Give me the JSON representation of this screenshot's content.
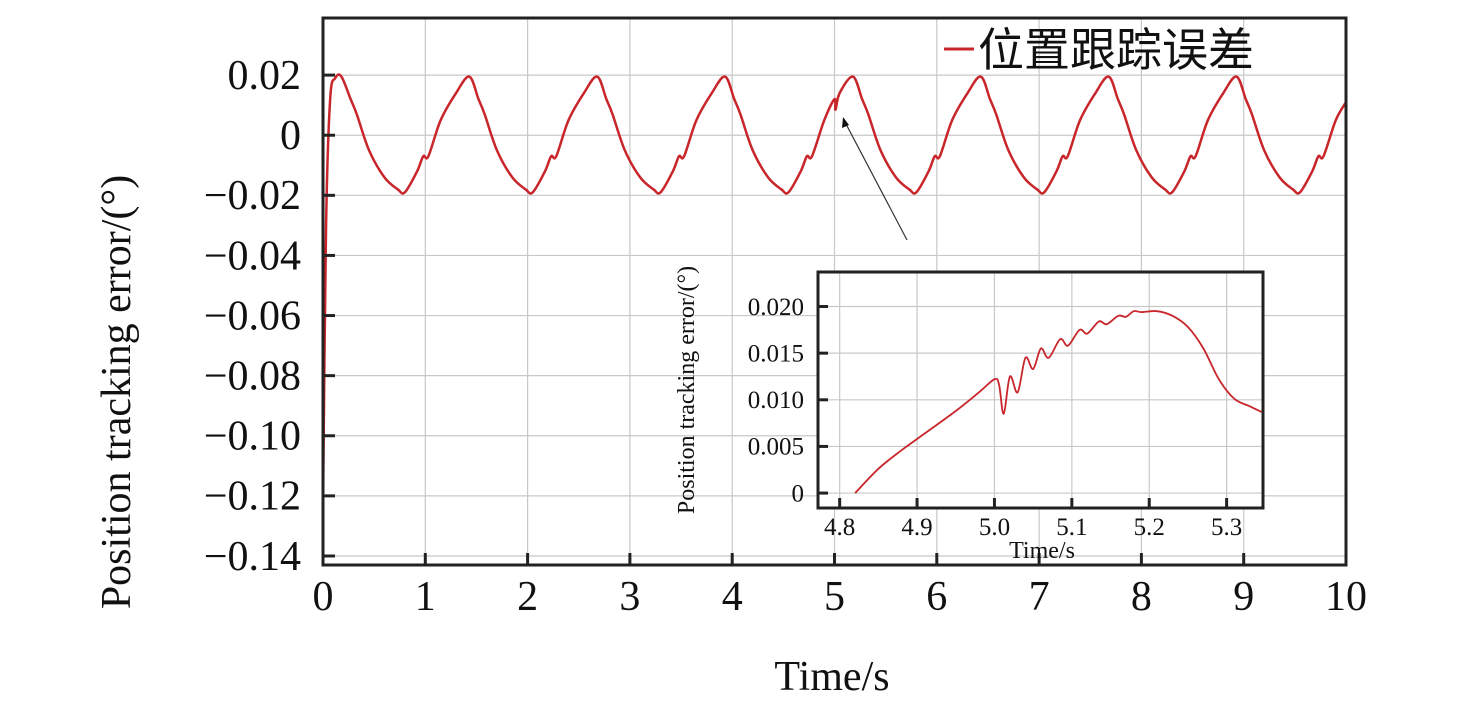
{
  "chart_data": [
    {
      "type": "line",
      "title": "",
      "xlabel": "Time/s",
      "ylabel": "Position tracking error/(°)",
      "xlim": [
        0,
        10
      ],
      "ylim": [
        -0.143,
        0.039
      ],
      "xticks": [
        0,
        1,
        2,
        3,
        4,
        5,
        6,
        7,
        8,
        9,
        10
      ],
      "xtick_labels": [
        "0",
        "1",
        "2",
        "3",
        "4",
        "5",
        "6",
        "7",
        "8",
        "9",
        "10"
      ],
      "yticks": [
        0.02,
        0,
        -0.02,
        -0.04,
        -0.06,
        -0.08,
        -0.1,
        -0.12,
        -0.14
      ],
      "ytick_labels": [
        "0.02",
        "0",
        "−0.02",
        "−0.04",
        "−0.06",
        "−0.08",
        "−0.10",
        "−0.12",
        "−0.14"
      ],
      "grid": true,
      "legend_position": "top-right",
      "series": [
        {
          "name": "位置跟踪误差",
          "color": "#c8262b",
          "points": [
            [
              0,
              -0.125
            ],
            [
              0.03,
              -0.03
            ],
            [
              0.07,
              0.012
            ],
            [
              0.12,
              0.019
            ],
            [
              0.18,
              0.0195
            ],
            [
              0.27,
              0.012
            ],
            [
              0.33,
              0.007
            ],
            [
              0.45,
              -0.005
            ],
            [
              0.6,
              -0.014
            ],
            [
              0.73,
              -0.018
            ],
            [
              0.8,
              -0.019
            ],
            [
              0.92,
              -0.012
            ],
            [
              0.98,
              -0.007
            ],
            [
              1.03,
              -0.007
            ],
            [
              1.15,
              0.005
            ],
            [
              1.3,
              0.014
            ],
            [
              1.43,
              0.0195
            ],
            [
              1.52,
              0.012
            ],
            [
              1.58,
              0.007
            ],
            [
              1.7,
              -0.005
            ],
            [
              1.85,
              -0.014
            ],
            [
              1.98,
              -0.018
            ],
            [
              2.05,
              -0.019
            ],
            [
              2.17,
              -0.012
            ],
            [
              2.23,
              -0.007
            ],
            [
              2.28,
              -0.007
            ],
            [
              2.4,
              0.005
            ],
            [
              2.55,
              0.014
            ],
            [
              2.68,
              0.0195
            ],
            [
              2.77,
              0.012
            ],
            [
              2.83,
              0.007
            ],
            [
              2.95,
              -0.005
            ],
            [
              3.1,
              -0.014
            ],
            [
              3.23,
              -0.018
            ],
            [
              3.3,
              -0.019
            ],
            [
              3.42,
              -0.012
            ],
            [
              3.48,
              -0.007
            ],
            [
              3.53,
              -0.007
            ],
            [
              3.65,
              0.005
            ],
            [
              3.8,
              0.014
            ],
            [
              3.93,
              0.0195
            ],
            [
              4.02,
              0.012
            ],
            [
              4.08,
              0.007
            ],
            [
              4.2,
              -0.005
            ],
            [
              4.35,
              -0.014
            ],
            [
              4.48,
              -0.018
            ],
            [
              4.55,
              -0.019
            ],
            [
              4.67,
              -0.012
            ],
            [
              4.73,
              -0.007
            ],
            [
              4.78,
              -0.007
            ],
            [
              4.9,
              0.005
            ],
            [
              5.0,
              0.012
            ],
            [
              5.01,
              0.0085
            ],
            [
              5.05,
              0.014
            ],
            [
              5.18,
              0.0195
            ],
            [
              5.27,
              0.012
            ],
            [
              5.33,
              0.007
            ],
            [
              5.45,
              -0.005
            ],
            [
              5.6,
              -0.014
            ],
            [
              5.73,
              -0.018
            ],
            [
              5.8,
              -0.019
            ],
            [
              5.92,
              -0.012
            ],
            [
              5.98,
              -0.007
            ],
            [
              6.03,
              -0.007
            ],
            [
              6.15,
              0.005
            ],
            [
              6.3,
              0.014
            ],
            [
              6.43,
              0.0195
            ],
            [
              6.52,
              0.012
            ],
            [
              6.58,
              0.007
            ],
            [
              6.7,
              -0.005
            ],
            [
              6.85,
              -0.014
            ],
            [
              6.98,
              -0.018
            ],
            [
              7.05,
              -0.019
            ],
            [
              7.17,
              -0.012
            ],
            [
              7.23,
              -0.007
            ],
            [
              7.28,
              -0.007
            ],
            [
              7.4,
              0.005
            ],
            [
              7.55,
              0.014
            ],
            [
              7.68,
              0.0195
            ],
            [
              7.77,
              0.012
            ],
            [
              7.83,
              0.007
            ],
            [
              7.95,
              -0.005
            ],
            [
              8.1,
              -0.014
            ],
            [
              8.23,
              -0.018
            ],
            [
              8.3,
              -0.019
            ],
            [
              8.42,
              -0.012
            ],
            [
              8.48,
              -0.007
            ],
            [
              8.53,
              -0.007
            ],
            [
              8.65,
              0.005
            ],
            [
              8.8,
              0.014
            ],
            [
              8.93,
              0.0195
            ],
            [
              9.02,
              0.012
            ],
            [
              9.08,
              0.007
            ],
            [
              9.2,
              -0.005
            ],
            [
              9.35,
              -0.014
            ],
            [
              9.48,
              -0.018
            ],
            [
              9.55,
              -0.019
            ],
            [
              9.67,
              -0.012
            ],
            [
              9.73,
              -0.007
            ],
            [
              9.78,
              -0.007
            ],
            [
              9.9,
              0.005
            ],
            [
              10,
              0.011
            ]
          ]
        }
      ],
      "annotations": [
        {
          "type": "arrow",
          "from": [
            5.7,
            -0.016
          ],
          "to": [
            5.07,
            0.005
          ],
          "text": ""
        }
      ]
    },
    {
      "type": "line",
      "title": "",
      "xlabel": "Time/s",
      "ylabel": "Position tracking error/(°)",
      "xlim": [
        4.772,
        5.347
      ],
      "ylim": [
        -0.0016,
        0.0237
      ],
      "xticks": [
        4.8,
        4.9,
        5.0,
        5.1,
        5.2,
        5.3
      ],
      "xtick_labels": [
        "4.8",
        "4.9",
        "5.0",
        "5.1",
        "5.2",
        "5.3"
      ],
      "yticks": [
        0.02,
        0.015,
        0.01,
        0.005,
        0
      ],
      "ytick_labels": [
        "0.020",
        "0.015",
        "0.010",
        "0.005",
        "0"
      ],
      "grid": true,
      "series": [
        {
          "name": "位置跟踪误差",
          "color": "#c8262b",
          "points": [
            [
              4.82,
              0
            ],
            [
              4.85,
              0.0026
            ],
            [
              4.88,
              0.0046
            ],
            [
              4.9,
              0.0058
            ],
            [
              4.95,
              0.0088
            ],
            [
              4.98,
              0.0108
            ],
            [
              5.0,
              0.0122
            ],
            [
              5.006,
              0.0116
            ],
            [
              5.012,
              0.0085
            ],
            [
              5.02,
              0.0125
            ],
            [
              5.03,
              0.0108
            ],
            [
              5.04,
              0.0145
            ],
            [
              5.05,
              0.0133
            ],
            [
              5.06,
              0.0155
            ],
            [
              5.07,
              0.0145
            ],
            [
              5.085,
              0.0165
            ],
            [
              5.095,
              0.0158
            ],
            [
              5.11,
              0.0175
            ],
            [
              5.12,
              0.0171
            ],
            [
              5.135,
              0.0184
            ],
            [
              5.145,
              0.0181
            ],
            [
              5.16,
              0.019
            ],
            [
              5.17,
              0.0189
            ],
            [
              5.18,
              0.0195
            ],
            [
              5.19,
              0.0194
            ],
            [
              5.21,
              0.0195
            ],
            [
              5.23,
              0.019
            ],
            [
              5.25,
              0.0178
            ],
            [
              5.27,
              0.0155
            ],
            [
              5.29,
              0.0122
            ],
            [
              5.31,
              0.0101
            ],
            [
              5.33,
              0.0093
            ],
            [
              5.345,
              0.0087
            ]
          ]
        }
      ]
    }
  ]
}
